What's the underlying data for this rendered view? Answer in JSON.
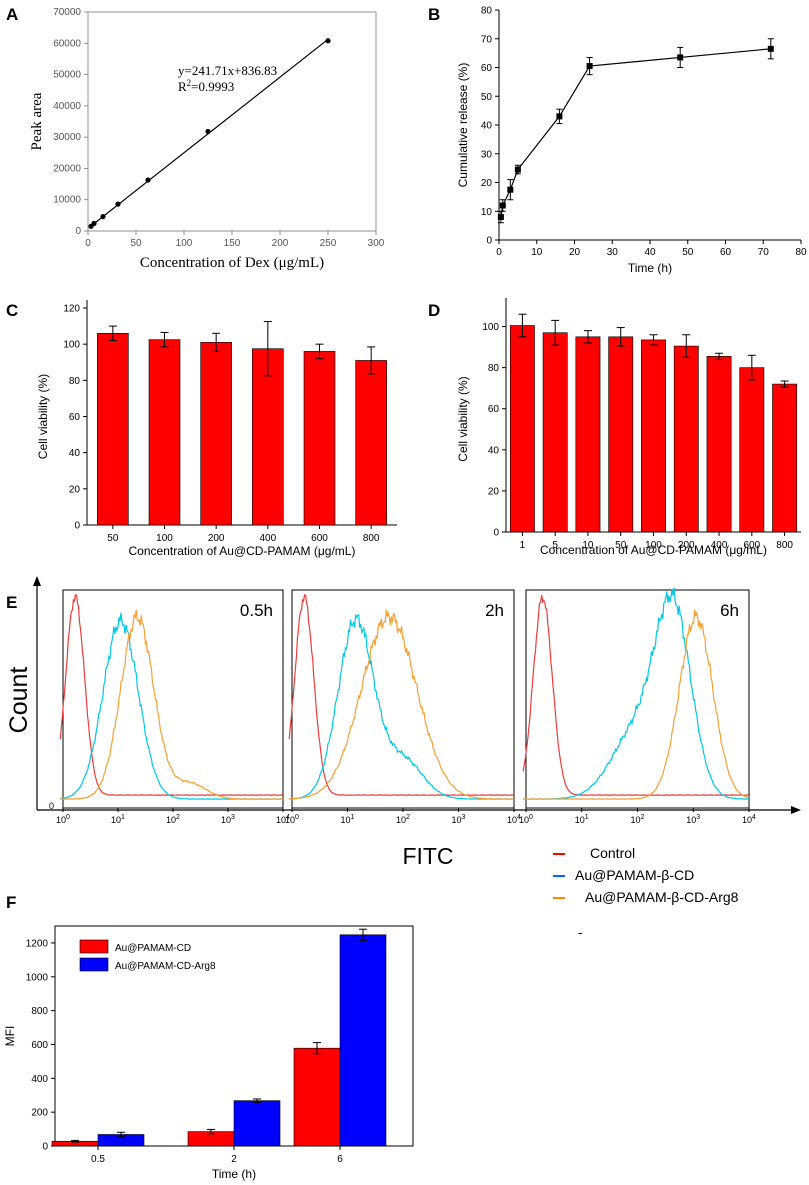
{
  "chart_data": [
    {
      "panel": "A",
      "type": "scatter",
      "xlabel": "Concentration of Dex (μg/mL)",
      "ylabel": "Peak area",
      "xlim": [
        0,
        300
      ],
      "ylim": [
        0,
        70000
      ],
      "xticks": [
        "0",
        "50",
        "100",
        "150",
        "200",
        "250",
        "300"
      ],
      "yticks": [
        "0",
        "10000",
        "20000",
        "30000",
        "40000",
        "50000",
        "60000",
        "70000"
      ],
      "x": [
        3.125,
        6.25,
        15.625,
        31.25,
        62.5,
        125,
        250
      ],
      "y": [
        1500,
        2400,
        4600,
        8600,
        16300,
        31800,
        60800
      ],
      "fit": {
        "slope": 241.71,
        "intercept": 836.83,
        "x_range": [
          3.125,
          250
        ]
      },
      "annotation_eq": "y=241.71x+836.83",
      "annotation_r2_prefix": "R",
      "annotation_r2_sup": "2",
      "annotation_r2_value": "=0.9993"
    },
    {
      "panel": "B",
      "type": "line",
      "xlabel": "Time (h)",
      "ylabel": "Cumulative release (%)",
      "xlim": [
        0,
        80
      ],
      "ylim": [
        0,
        80
      ],
      "xticks": [
        "0",
        "10",
        "20",
        "30",
        "40",
        "50",
        "60",
        "70",
        "80"
      ],
      "yticks": [
        "0",
        "10",
        "20",
        "30",
        "40",
        "50",
        "60",
        "70",
        "80"
      ],
      "x": [
        0.5,
        1,
        3,
        5,
        16,
        24,
        48,
        72
      ],
      "y": [
        8,
        12,
        17.5,
        24.5,
        43,
        60.5,
        63.5,
        66.5
      ],
      "err": [
        2,
        2,
        3.5,
        1.5,
        2.5,
        3,
        3.5,
        3.5
      ]
    },
    {
      "panel": "C",
      "type": "bar",
      "xlabel": "Concentration of Au@CD-PAMAM (μg/mL)",
      "ylabel": "Cell viability (%)",
      "ylim": [
        0,
        120
      ],
      "yticks": [
        "0",
        "20",
        "40",
        "60",
        "80",
        "100",
        "120"
      ],
      "categories": [
        "50",
        "100",
        "200",
        "400",
        "600",
        "800"
      ],
      "values": [
        106,
        102.5,
        101,
        97.5,
        96,
        91
      ],
      "err": [
        4,
        4,
        5,
        15,
        4,
        7.5
      ],
      "color": "#ff0000"
    },
    {
      "panel": "D",
      "type": "bar",
      "xlabel": "Concentration of Au@CD-PAMAM (μg/mL)",
      "ylabel": "Cell viability (%)",
      "ylim": [
        0,
        110
      ],
      "yticks": [
        "0",
        "20",
        "40",
        "60",
        "80",
        "100"
      ],
      "categories": [
        "1",
        "5",
        "10",
        "50",
        "100",
        "200",
        "400",
        "600",
        "800"
      ],
      "values": [
        100.5,
        97,
        95,
        95,
        93.5,
        90.5,
        85.5,
        80,
        72
      ],
      "err": [
        5.5,
        6,
        3,
        4.5,
        2.5,
        5.5,
        1.5,
        6,
        1.5
      ],
      "color": "#ff0000"
    },
    {
      "panel": "E",
      "type": "line",
      "ylabel": "Count",
      "xlabel": "FITC",
      "y_zero_label": "0",
      "x_tick_base": "10",
      "x_tick_exps": [
        "0",
        "1",
        "2",
        "3",
        "4"
      ],
      "subplots": [
        {
          "label": "0.5h",
          "control_peak": 0.22,
          "cd_peak": 1.05,
          "arg_peak": 1.35
        },
        {
          "label": "2h",
          "control_peak": 0.22,
          "cd_peak": 1.15,
          "arg_peak": 1.75
        },
        {
          "label": "6h",
          "control_peak": 0.3,
          "cd_peak": 2.65,
          "arg_peak": 3.05
        }
      ],
      "legend": [
        {
          "name": "Control",
          "color": "#ff0000"
        },
        {
          "name": "Au@PAMAM-β-CD",
          "color": "#0066ff"
        },
        {
          "name": "Au@PAMAM-β-CD-Arg8",
          "color": "#ff8800"
        }
      ],
      "series_colors": {
        "control": "#ee3b3b",
        "cd": "#00c8e6",
        "arg": "#f7a035"
      },
      "stray_mark": "-"
    },
    {
      "panel": "F",
      "type": "bar",
      "xlabel": "Time (h)",
      "ylabel": "MFI",
      "ylim": [
        0,
        1300
      ],
      "yticks": [
        "0",
        "200",
        "400",
        "600",
        "800",
        "1000",
        "1200"
      ],
      "categories": [
        "0.5",
        "2",
        "6"
      ],
      "series": [
        {
          "name": "Au@PAMAM-CD",
          "color": "#ff0000",
          "values": [
            28,
            85,
            578
          ],
          "err": [
            5,
            13,
            33
          ]
        },
        {
          "name": "Au@PAMAM-CD-Arg8",
          "color": "#0000ff",
          "values": [
            68,
            268,
            1248
          ],
          "err": [
            13,
            10,
            33
          ]
        }
      ]
    }
  ]
}
